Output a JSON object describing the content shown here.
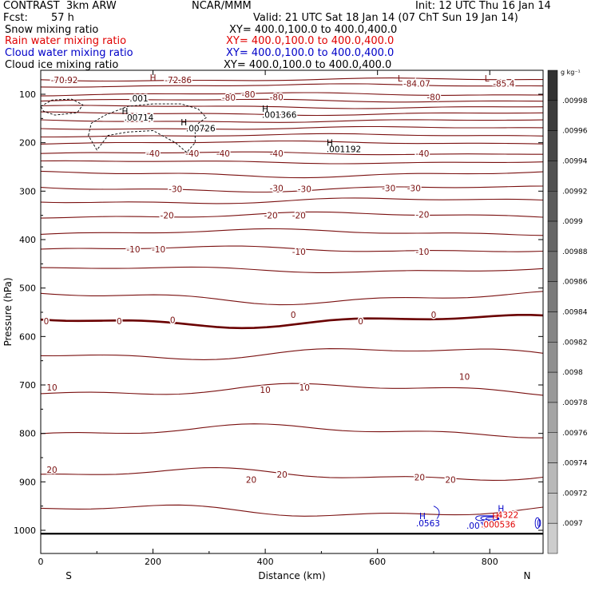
{
  "header": {
    "left_title": "CONTRAST  3km ARW",
    "left_fcst_label": "Fcst:",
    "left_fcst_value": "57 h",
    "center_title": "NCAR/MMM",
    "init": "Init: 12 UTC Thu 16 Jan 14",
    "valid": "Valid: 21 UTC Sat 18 Jan 14 (07 ChT Sun 19 Jan 14)",
    "fields": [
      {
        "name": "Snow mixing ratio",
        "xy": "XY= 400.0,100.0 to 400.0,400.0",
        "color": "#000000"
      },
      {
        "name": "Rain water mixing ratio",
        "xy": "XY= 400.0,100.0 to 400.0,400.0",
        "color": "#e00000"
      },
      {
        "name": "Cloud water mixing ratio",
        "xy": "XY= 400.0,100.0 to 400.0,400.0",
        "color": "#0000c8"
      },
      {
        "name": "Cloud ice mixing ratio",
        "xy": "XY= 400.0,100.0 to 400.0,400.0",
        "color": "#000000"
      }
    ]
  },
  "chart_data": {
    "type": "line",
    "xlabel": "Distance (km)",
    "ylabel": "Pressure (hPa)",
    "xlim": [
      0,
      895
    ],
    "ylim": [
      1050,
      55
    ],
    "x_ticks": [
      0,
      200,
      400,
      600,
      800
    ],
    "y_ticks": [
      100,
      200,
      300,
      400,
      500,
      600,
      700,
      800,
      900,
      1000
    ],
    "x_end_labels": {
      "left": "S",
      "right": "N"
    },
    "contour_color": "#7a1010",
    "zero_line_color": "#6a0000",
    "isotherm_levels": [
      {
        "p": 70,
        "label": "-70.92",
        "lx": 42
      },
      {
        "p": 82,
        "label": "",
        "lx": null
      },
      {
        "p": 100,
        "label": "-80",
        "lx": 370
      },
      {
        "p": 113,
        "label": "",
        "lx": null
      },
      {
        "p": 126,
        "label": "",
        "lx": null
      },
      {
        "p": 140,
        "label": "",
        "lx": null
      },
      {
        "p": 155,
        "label": "",
        "lx": null
      },
      {
        "p": 170,
        "label": "",
        "lx": null
      },
      {
        "p": 185,
        "label": "",
        "lx": null
      },
      {
        "p": 200,
        "label": "",
        "lx": null
      },
      {
        "p": 222,
        "label": "-40",
        "lx": 270
      },
      {
        "p": 240,
        "label": "",
        "lx": null
      },
      {
        "p": 265,
        "label": "",
        "lx": null
      },
      {
        "p": 295,
        "label": "-30",
        "lx": 470
      },
      {
        "p": 320,
        "label": "",
        "lx": null
      },
      {
        "p": 350,
        "label": "-20",
        "lx": 460
      },
      {
        "p": 385,
        "label": "",
        "lx": null
      },
      {
        "p": 420,
        "label": "-10",
        "lx": 210
      },
      {
        "p": 462,
        "label": "",
        "lx": null
      },
      {
        "p": 520,
        "label": "",
        "lx": null
      },
      {
        "p": 568,
        "label": "0",
        "lx": 570
      },
      {
        "p": 635,
        "label": "",
        "lx": null
      },
      {
        "p": 710,
        "label": "10",
        "lx": 400
      },
      {
        "p": 795,
        "label": "",
        "lx": null
      },
      {
        "p": 885,
        "label": "20",
        "lx": 430
      },
      {
        "p": 960,
        "label": "",
        "lx": null
      }
    ],
    "isotherm_labels": [
      {
        "text": "-72.86",
        "x": 245,
        "p": 70
      },
      {
        "text": "-84.07",
        "x": 670,
        "p": 78
      },
      {
        "text": "-85.4",
        "x": 825,
        "p": 78
      },
      {
        "text": ".001",
        "x": 175,
        "p": 108
      },
      {
        "text": "-80",
        "x": 335,
        "p": 107
      },
      {
        "text": "-80",
        "x": 420,
        "p": 106
      },
      {
        "text": "-80",
        "x": 700,
        "p": 106
      },
      {
        "text": ".00714",
        "x": 175,
        "p": 148
      },
      {
        "text": ".00726",
        "x": 285,
        "p": 170
      },
      {
        "text": ".001366",
        "x": 425,
        "p": 142
      },
      {
        "text": ".001192",
        "x": 540,
        "p": 213
      },
      {
        "text": "-40",
        "x": 200,
        "p": 222
      },
      {
        "text": "-40",
        "x": 325,
        "p": 222
      },
      {
        "text": "-40",
        "x": 420,
        "p": 222
      },
      {
        "text": "-40",
        "x": 680,
        "p": 222
      },
      {
        "text": "-30",
        "x": 240,
        "p": 295
      },
      {
        "text": "-30",
        "x": 420,
        "p": 294
      },
      {
        "text": "-30",
        "x": 620,
        "p": 294
      },
      {
        "text": "-30",
        "x": 665,
        "p": 294
      },
      {
        "text": "-20",
        "x": 225,
        "p": 350
      },
      {
        "text": "-20",
        "x": 410,
        "p": 350
      },
      {
        "text": "-20",
        "x": 680,
        "p": 348
      },
      {
        "text": "-10",
        "x": 165,
        "p": 420
      },
      {
        "text": "-10",
        "x": 460,
        "p": 425
      },
      {
        "text": "-10",
        "x": 680,
        "p": 425
      },
      {
        "text": "0",
        "x": 10,
        "p": 568
      },
      {
        "text": "0",
        "x": 140,
        "p": 568
      },
      {
        "text": "0",
        "x": 235,
        "p": 566
      },
      {
        "text": "0",
        "x": 450,
        "p": 555
      },
      {
        "text": "0",
        "x": 700,
        "p": 555
      },
      {
        "text": "10",
        "x": 20,
        "p": 705
      },
      {
        "text": "10",
        "x": 470,
        "p": 705
      },
      {
        "text": "10",
        "x": 755,
        "p": 683
      },
      {
        "text": "20",
        "x": 20,
        "p": 875
      },
      {
        "text": "20",
        "x": 375,
        "p": 895
      },
      {
        "text": "20",
        "x": 675,
        "p": 890
      },
      {
        "text": "20",
        "x": 730,
        "p": 895
      },
      {
        "text": ".0563",
        "x": 690,
        "p": 985
      },
      {
        "text": ".001",
        "x": 775,
        "p": 990
      },
      {
        "text": ".000536",
        "x": 815,
        "p": 988
      },
      {
        "text": ".4322",
        "x": 830,
        "p": 968
      }
    ],
    "extrema_marks": [
      {
        "text": "H",
        "x": 200,
        "p": 65,
        "color": "#7a1010"
      },
      {
        "text": "L",
        "x": 640,
        "p": 67,
        "color": "#7a1010"
      },
      {
        "text": "L",
        "x": 795,
        "p": 67,
        "color": "#7a1010"
      },
      {
        "text": "H",
        "x": 150,
        "p": 135,
        "color": "#000000"
      },
      {
        "text": "H",
        "x": 255,
        "p": 158,
        "color": "#000000"
      },
      {
        "text": "H",
        "x": 400,
        "p": 130,
        "color": "#000000"
      },
      {
        "text": "H",
        "x": 515,
        "p": 200,
        "color": "#000000"
      },
      {
        "text": "H",
        "x": 680,
        "p": 970,
        "color": "#0000c8"
      },
      {
        "text": "H",
        "x": 820,
        "p": 955,
        "color": "#0000c8"
      },
      {
        "text": "H",
        "x": 810,
        "p": 970,
        "color": "#e00000"
      }
    ],
    "cloud_ice_contour": [
      [
        0,
        125
      ],
      [
        20,
        112
      ],
      [
        55,
        110
      ],
      [
        75,
        122
      ],
      [
        65,
        138
      ],
      [
        25,
        143
      ],
      [
        5,
        135
      ]
    ],
    "cloud_ice_contour_2": [
      [
        85,
        185
      ],
      [
        90,
        160
      ],
      [
        115,
        143
      ],
      [
        155,
        125
      ],
      [
        200,
        120
      ],
      [
        250,
        120
      ],
      [
        280,
        130
      ],
      [
        295,
        148
      ],
      [
        275,
        165
      ],
      [
        275,
        200
      ],
      [
        260,
        220
      ],
      [
        240,
        200
      ],
      [
        200,
        175
      ],
      [
        155,
        178
      ],
      [
        120,
        185
      ],
      [
        100,
        215
      ]
    ],
    "ground_p": 1007,
    "colorbar": {
      "unit": "g kg⁻¹",
      "labels": [
        ".00998",
        ".00996",
        ".00994",
        ".00992",
        ".0099",
        ".00988",
        ".00986",
        ".00984",
        ".00982",
        ".0098",
        ".00978",
        ".00976",
        ".00974",
        ".00972",
        ".0097"
      ]
    }
  }
}
